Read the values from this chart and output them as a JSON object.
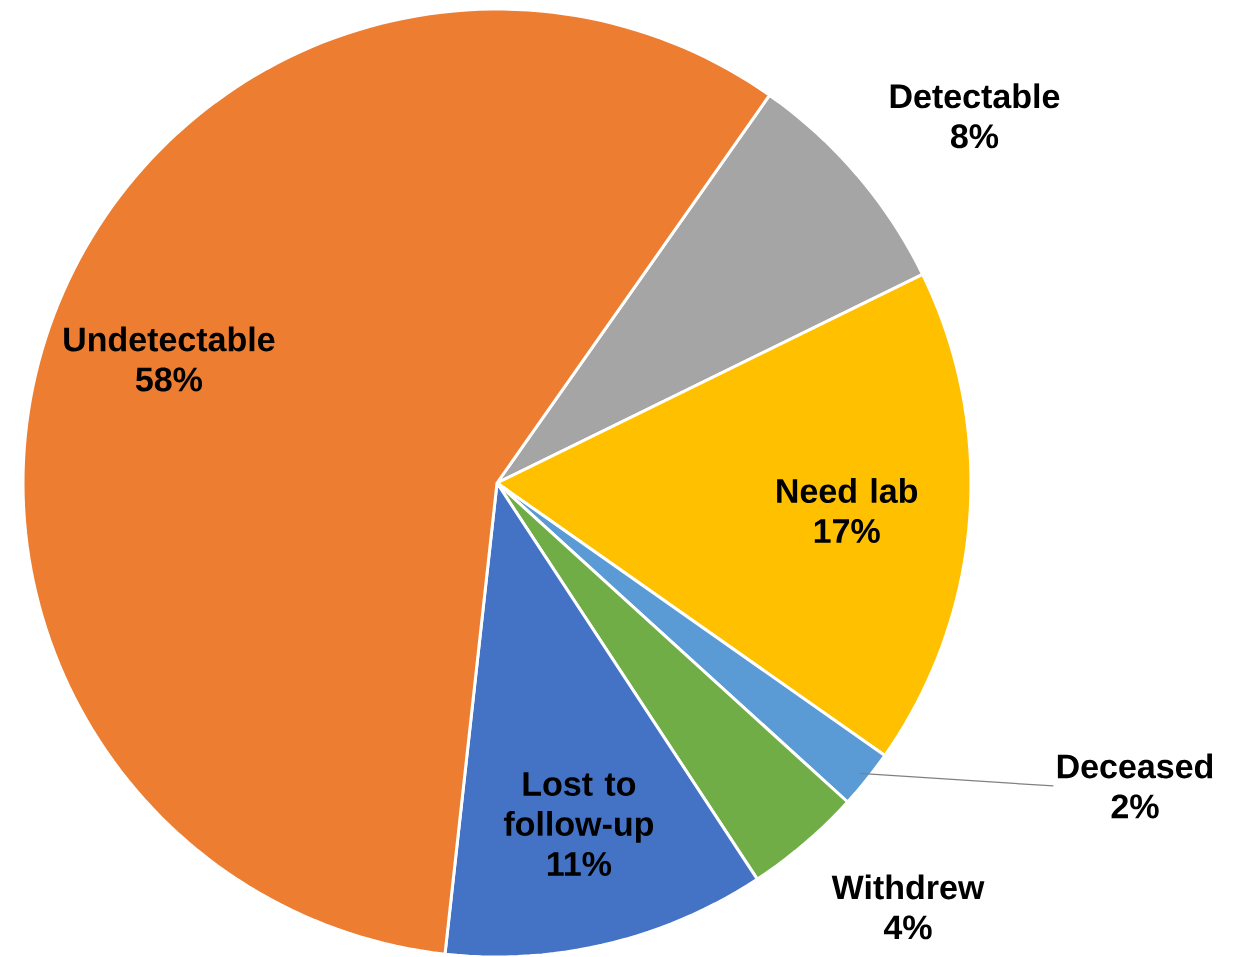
{
  "chart_data": {
    "type": "pie",
    "categories": [
      "Detectable",
      "Need lab",
      "Deceased",
      "Withdrew",
      "Lost to follow-up",
      "Undetectable"
    ],
    "values": [
      8,
      17,
      2,
      4,
      11,
      58
    ],
    "value_labels": [
      "8%",
      "17%",
      "2%",
      "4%",
      "11%",
      "58%"
    ],
    "colors": [
      "#a5a5a5",
      "#ffc000",
      "#5b9bd5",
      "#70ad47",
      "#4472c4",
      "#ed7d31"
    ]
  }
}
